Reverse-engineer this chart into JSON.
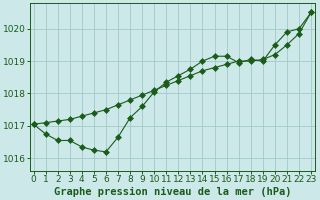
{
  "line1_x": [
    0,
    1,
    2,
    3,
    4,
    5,
    6,
    7,
    8,
    9,
    10,
    11,
    12,
    13,
    14,
    15,
    16,
    17,
    18,
    19,
    20,
    21,
    22,
    23
  ],
  "line1_y": [
    1017.05,
    1017.1,
    1017.15,
    1017.2,
    1017.3,
    1017.4,
    1017.5,
    1017.65,
    1017.8,
    1017.95,
    1018.1,
    1018.25,
    1018.4,
    1018.55,
    1018.7,
    1018.8,
    1018.9,
    1019.0,
    1019.0,
    1019.05,
    1019.2,
    1019.5,
    1019.85,
    1020.5
  ],
  "line2_x": [
    0,
    1,
    2,
    3,
    4,
    5,
    6,
    7,
    8,
    9,
    10,
    11,
    12,
    13,
    14,
    15,
    16,
    17,
    18,
    19,
    20,
    21,
    22,
    23
  ],
  "line2_y": [
    1017.05,
    1016.75,
    1016.55,
    1016.55,
    1016.35,
    1016.25,
    1016.2,
    1016.65,
    1017.25,
    1017.6,
    1018.05,
    1018.35,
    1018.55,
    1018.75,
    1019.0,
    1019.15,
    1019.15,
    1018.95,
    1019.05,
    1019.0,
    1019.5,
    1019.9,
    1020.0,
    1020.5
  ],
  "line_color": "#1a5c1a",
  "bg_color": "#cce8e8",
  "grid_color": "#a0c8c8",
  "xlabel": "Graphe pression niveau de la mer (hPa)",
  "xticks": [
    0,
    1,
    2,
    3,
    4,
    5,
    6,
    7,
    8,
    9,
    10,
    11,
    12,
    13,
    14,
    15,
    16,
    17,
    18,
    19,
    20,
    21,
    22,
    23
  ],
  "yticks": [
    1016,
    1017,
    1018,
    1019,
    1020
  ],
  "ylim": [
    1015.6,
    1020.8
  ],
  "xlim": [
    -0.3,
    23.3
  ],
  "xlabel_color": "#1a5c1a",
  "xlabel_fontsize": 7.5,
  "tick_fontsize": 6.5,
  "tick_color": "#1a5c1a",
  "marker_size": 3.0,
  "linewidth": 0.8
}
